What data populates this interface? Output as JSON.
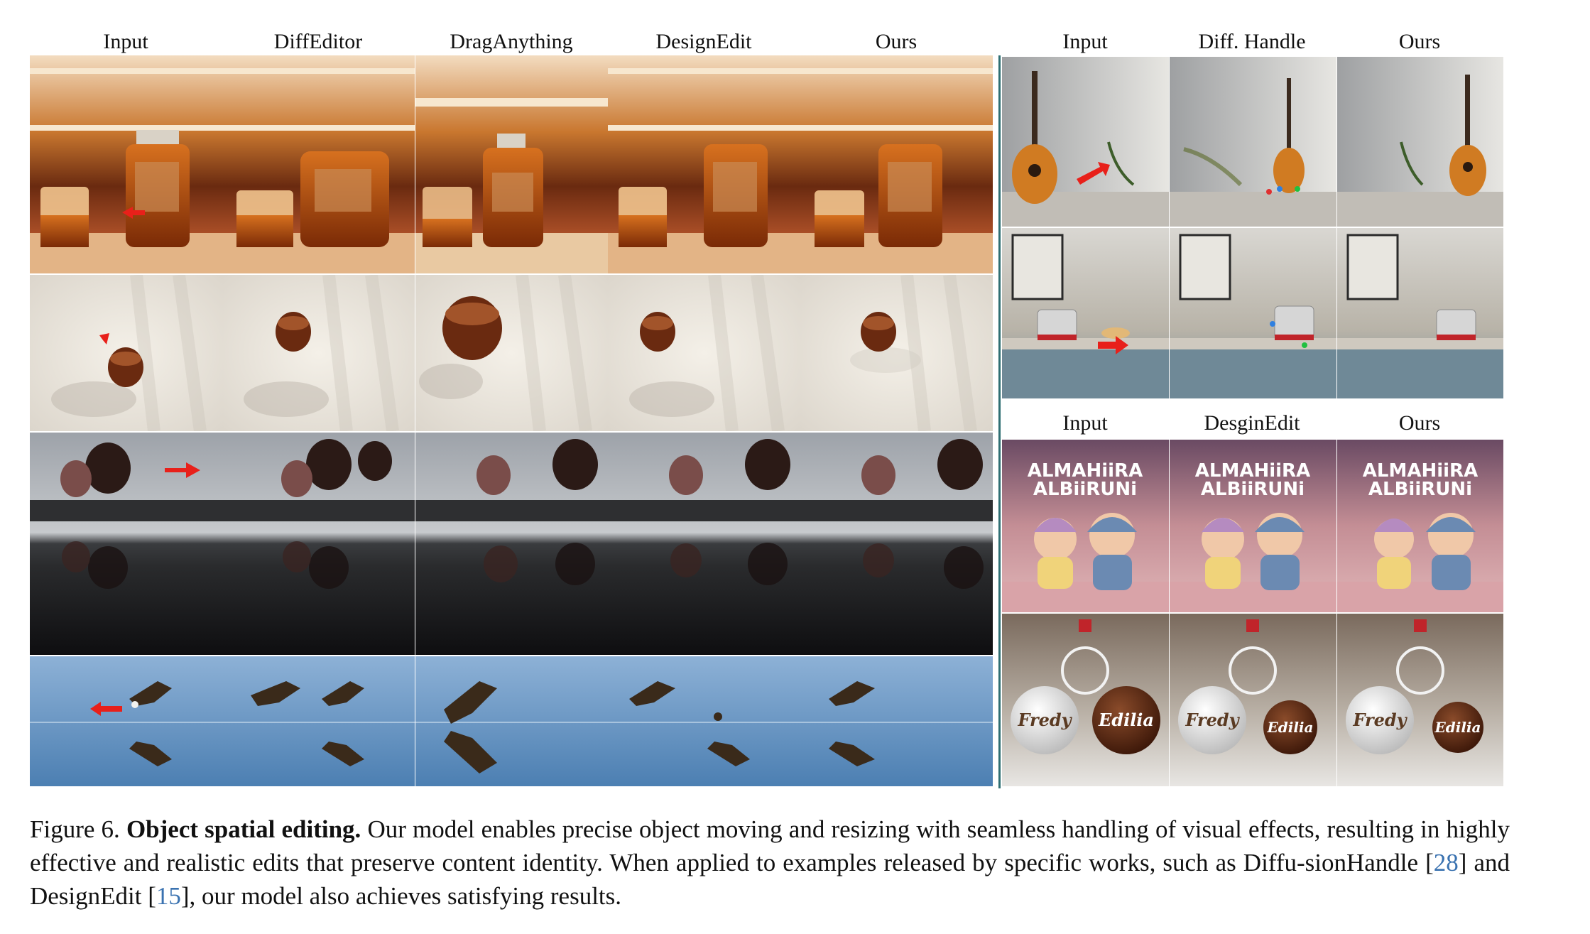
{
  "left_panel": {
    "columns": [
      "Input",
      "DiffEditor",
      "DragAnything",
      "DesignEdit",
      "Ours"
    ],
    "rows": [
      "whisky-bottle",
      "coffee-cup",
      "hot-air-balloons",
      "eagle"
    ]
  },
  "right_top_panel": {
    "columns": [
      "Input",
      "Diff. Handle",
      "Ours"
    ],
    "rows": [
      "guitar",
      "toaster"
    ]
  },
  "right_bottom_panel": {
    "columns": [
      "Input",
      "DesginEdit",
      "Ours"
    ],
    "rows": [
      "poster",
      "christmas-ornaments"
    ],
    "poster_title_line1": "ALMAHiiRA",
    "poster_title_line2": "ALBiiRUNi",
    "ornament_left_text": "Fredy",
    "ornament_right_text": "Edilia"
  },
  "caption": {
    "figure_label": "Figure 6.",
    "title": "Object spatial editing.",
    "text_before_ref1": "Our model enables precise object moving and resizing with seamless handling of visual effects, resulting in highly effective and realistic edits that preserve content identity.  When applied to examples released by specific works, such as Diffu-sionHandle [",
    "ref1": "28",
    "text_between_refs": "] and DesignEdit [",
    "ref2": "15",
    "text_after_ref2": "], our model also achieves satisfying results."
  },
  "colors": {
    "edit_arrow": "#e8201a",
    "citation": "#3a72b0",
    "panel_divider": "#2f6f73"
  }
}
